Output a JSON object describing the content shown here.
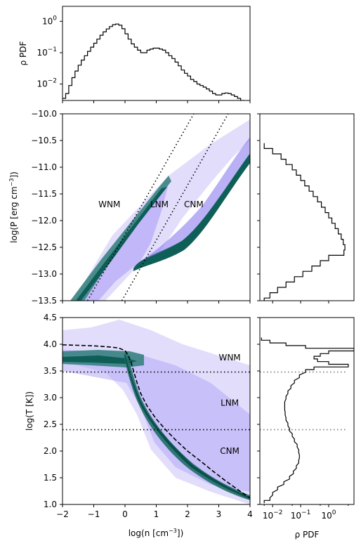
{
  "chart_data": [
    {
      "id": "top-density-pdf",
      "type": "line",
      "ylabel": "ρ PDF",
      "yscale": "log",
      "ylim": [
        0.003,
        3
      ],
      "xlim": [
        -2,
        4
      ],
      "yticks": [
        {
          "v": 1,
          "b": "10",
          "e": "0"
        },
        {
          "v": 0.1,
          "b": "10",
          "e": "−1"
        },
        {
          "v": 0.01,
          "b": "10",
          "e": "−2"
        }
      ],
      "x": [
        -2.0,
        -1.9,
        -1.8,
        -1.7,
        -1.6,
        -1.5,
        -1.4,
        -1.3,
        -1.2,
        -1.1,
        -1.0,
        -0.9,
        -0.8,
        -0.7,
        -0.6,
        -0.5,
        -0.4,
        -0.3,
        -0.2,
        -0.1,
        0.0,
        0.1,
        0.2,
        0.3,
        0.4,
        0.5,
        0.6,
        0.7,
        0.8,
        0.9,
        1.0,
        1.1,
        1.2,
        1.3,
        1.4,
        1.5,
        1.6,
        1.7,
        1.8,
        1.9,
        2.0,
        2.1,
        2.2,
        2.3,
        2.4,
        2.5,
        2.6,
        2.7,
        2.8,
        2.9,
        3.0,
        3.1,
        3.2,
        3.3,
        3.4,
        3.5,
        3.6,
        3.7,
        3.8,
        3.9
      ],
      "y": [
        0.0035,
        0.005,
        0.009,
        0.016,
        0.026,
        0.04,
        0.058,
        0.08,
        0.11,
        0.15,
        0.2,
        0.27,
        0.36,
        0.46,
        0.57,
        0.68,
        0.78,
        0.82,
        0.75,
        0.58,
        0.4,
        0.27,
        0.19,
        0.15,
        0.12,
        0.1,
        0.1,
        0.12,
        0.13,
        0.14,
        0.14,
        0.13,
        0.12,
        0.1,
        0.08,
        0.065,
        0.05,
        0.038,
        0.028,
        0.022,
        0.018,
        0.014,
        0.012,
        0.01,
        0.009,
        0.008,
        0.007,
        0.006,
        0.005,
        0.0045,
        0.0045,
        0.005,
        0.0052,
        0.005,
        0.0045,
        0.004,
        0.0035,
        0.003,
        0.0027,
        0.0025
      ]
    },
    {
      "id": "pressure-density-phase",
      "type": "heatmap",
      "ylabel_base": "log(P [erg cm",
      "ylabel_exp": "−3",
      "ylabel_tail": "])",
      "xlim": [
        -2,
        4
      ],
      "ylim": [
        -13.5,
        -10.0
      ],
      "yticks": [
        "−10.0",
        "−10.5",
        "−11.0",
        "−11.5",
        "−12.0",
        "−12.5",
        "−13.0",
        "−13.5"
      ],
      "ytick_values": [
        -10.0,
        -10.5,
        -11.0,
        -11.5,
        -12.0,
        -12.5,
        -13.0,
        -13.5
      ],
      "annotations": [
        {
          "text": "WNM",
          "x": -0.5,
          "y": -11.7
        },
        {
          "text": "LNM",
          "x": 1.1,
          "y": -11.7
        },
        {
          "text": "CNM",
          "x": 2.2,
          "y": -11.7
        }
      ],
      "boundary_lines": [
        {
          "style": "dotted",
          "x": [
            -1.2,
            2.2
          ],
          "y": [
            -13.5,
            -10.0
          ]
        },
        {
          "style": "dotted",
          "x": [
            -0.1,
            3.3
          ],
          "y": [
            -13.5,
            -10.0
          ]
        }
      ]
    },
    {
      "id": "right-pressure-pdf",
      "type": "line",
      "orientation": "horizontal",
      "xscale": "log",
      "ylim": [
        -13.5,
        -10.0
      ],
      "y": [
        -10.6,
        -10.7,
        -10.8,
        -10.9,
        -11.0,
        -11.1,
        -11.2,
        -11.3,
        -11.4,
        -11.5,
        -11.6,
        -11.7,
        -11.8,
        -11.9,
        -12.0,
        -12.1,
        -12.2,
        -12.3,
        -12.4,
        -12.5,
        -12.6,
        -12.7,
        -12.8,
        -12.9,
        -13.0,
        -13.1,
        -13.2,
        -13.3,
        -13.4,
        -13.5
      ],
      "x": [
        0.005,
        0.01,
        0.02,
        0.03,
        0.05,
        0.07,
        0.1,
        0.14,
        0.2,
        0.28,
        0.4,
        0.55,
        0.75,
        1.0,
        1.3,
        1.7,
        2.2,
        2.8,
        3.3,
        3.8,
        3.5,
        1.0,
        0.5,
        0.25,
        0.12,
        0.06,
        0.03,
        0.015,
        0.008,
        0.005
      ]
    },
    {
      "id": "temperature-density-phase",
      "type": "heatmap",
      "xlabel_base": "log(n [cm",
      "xlabel_exp": "−3",
      "xlabel_tail": "])",
      "ylabel": "log(T [K])",
      "xlim": [
        -2,
        4
      ],
      "ylim": [
        1.0,
        4.5
      ],
      "xticks": [
        "−2",
        "−1",
        "0",
        "1",
        "2",
        "3",
        "4"
      ],
      "xtick_values": [
        -2,
        -1,
        0,
        1,
        2,
        3,
        4
      ],
      "yticks": [
        "1.0",
        "1.5",
        "2.0",
        "2.5",
        "3.0",
        "3.5",
        "4.0",
        "4.5"
      ],
      "ytick_values": [
        1.0,
        1.5,
        2.0,
        2.5,
        3.0,
        3.5,
        4.0,
        4.5
      ],
      "annotations": [
        {
          "text": "WNM",
          "x": 3.35,
          "y": 3.75
        },
        {
          "text": "LNM",
          "x": 3.35,
          "y": 2.9
        },
        {
          "text": "CNM",
          "x": 3.35,
          "y": 2.0
        }
      ],
      "hlines": [
        {
          "y": 3.48,
          "style": "dotted"
        },
        {
          "y": 2.4,
          "style": "dotted"
        }
      ],
      "equilibrium_curve": {
        "style": "dashed",
        "x": [
          -2.0,
          -1.5,
          -1.0,
          -0.5,
          -0.2,
          0.0,
          0.1,
          0.2,
          0.3,
          0.4,
          0.5,
          0.7,
          1.0,
          1.3,
          1.6,
          2.0,
          2.4,
          2.8,
          3.2,
          3.6,
          4.0
        ],
        "y": [
          3.99,
          3.98,
          3.97,
          3.95,
          3.93,
          3.88,
          3.8,
          3.65,
          3.45,
          3.25,
          3.08,
          2.85,
          2.6,
          2.4,
          2.22,
          2.0,
          1.82,
          1.63,
          1.45,
          1.28,
          1.12
        ]
      }
    },
    {
      "id": "right-temperature-pdf",
      "type": "line",
      "orientation": "horizontal",
      "xscale": "log",
      "xlabel": "ρ PDF",
      "xlim": [
        0.0035,
        8
      ],
      "xticks": [
        {
          "v": 0.01,
          "b": "10",
          "e": "−2"
        },
        {
          "v": 0.1,
          "b": "10",
          "e": "−1"
        },
        {
          "v": 1,
          "b": "10",
          "e": "0"
        }
      ],
      "ylim": [
        1.0,
        4.5
      ],
      "hlines": [
        {
          "y": 3.48,
          "style": "dotted"
        },
        {
          "y": 2.4,
          "style": "dotted"
        }
      ],
      "y": [
        1.05,
        1.1,
        1.2,
        1.3,
        1.4,
        1.5,
        1.6,
        1.7,
        1.8,
        1.9,
        2.0,
        2.1,
        2.2,
        2.3,
        2.4,
        2.5,
        2.6,
        2.7,
        2.8,
        2.9,
        3.0,
        3.1,
        3.2,
        3.3,
        3.4,
        3.5,
        3.55,
        3.6,
        3.65,
        3.7,
        3.75,
        3.8,
        3.85,
        3.9,
        3.95,
        4.0,
        4.05,
        4.1
      ],
      "x": [
        0.005,
        0.008,
        0.01,
        0.015,
        0.025,
        0.04,
        0.055,
        0.07,
        0.085,
        0.09,
        0.085,
        0.075,
        0.06,
        0.05,
        0.04,
        0.035,
        0.03,
        0.028,
        0.027,
        0.027,
        0.03,
        0.035,
        0.045,
        0.06,
        0.09,
        0.15,
        0.3,
        5.0,
        1.0,
        0.4,
        0.3,
        0.5,
        1.0,
        8.0,
        0.15,
        0.03,
        0.008,
        0.004
      ]
    }
  ]
}
